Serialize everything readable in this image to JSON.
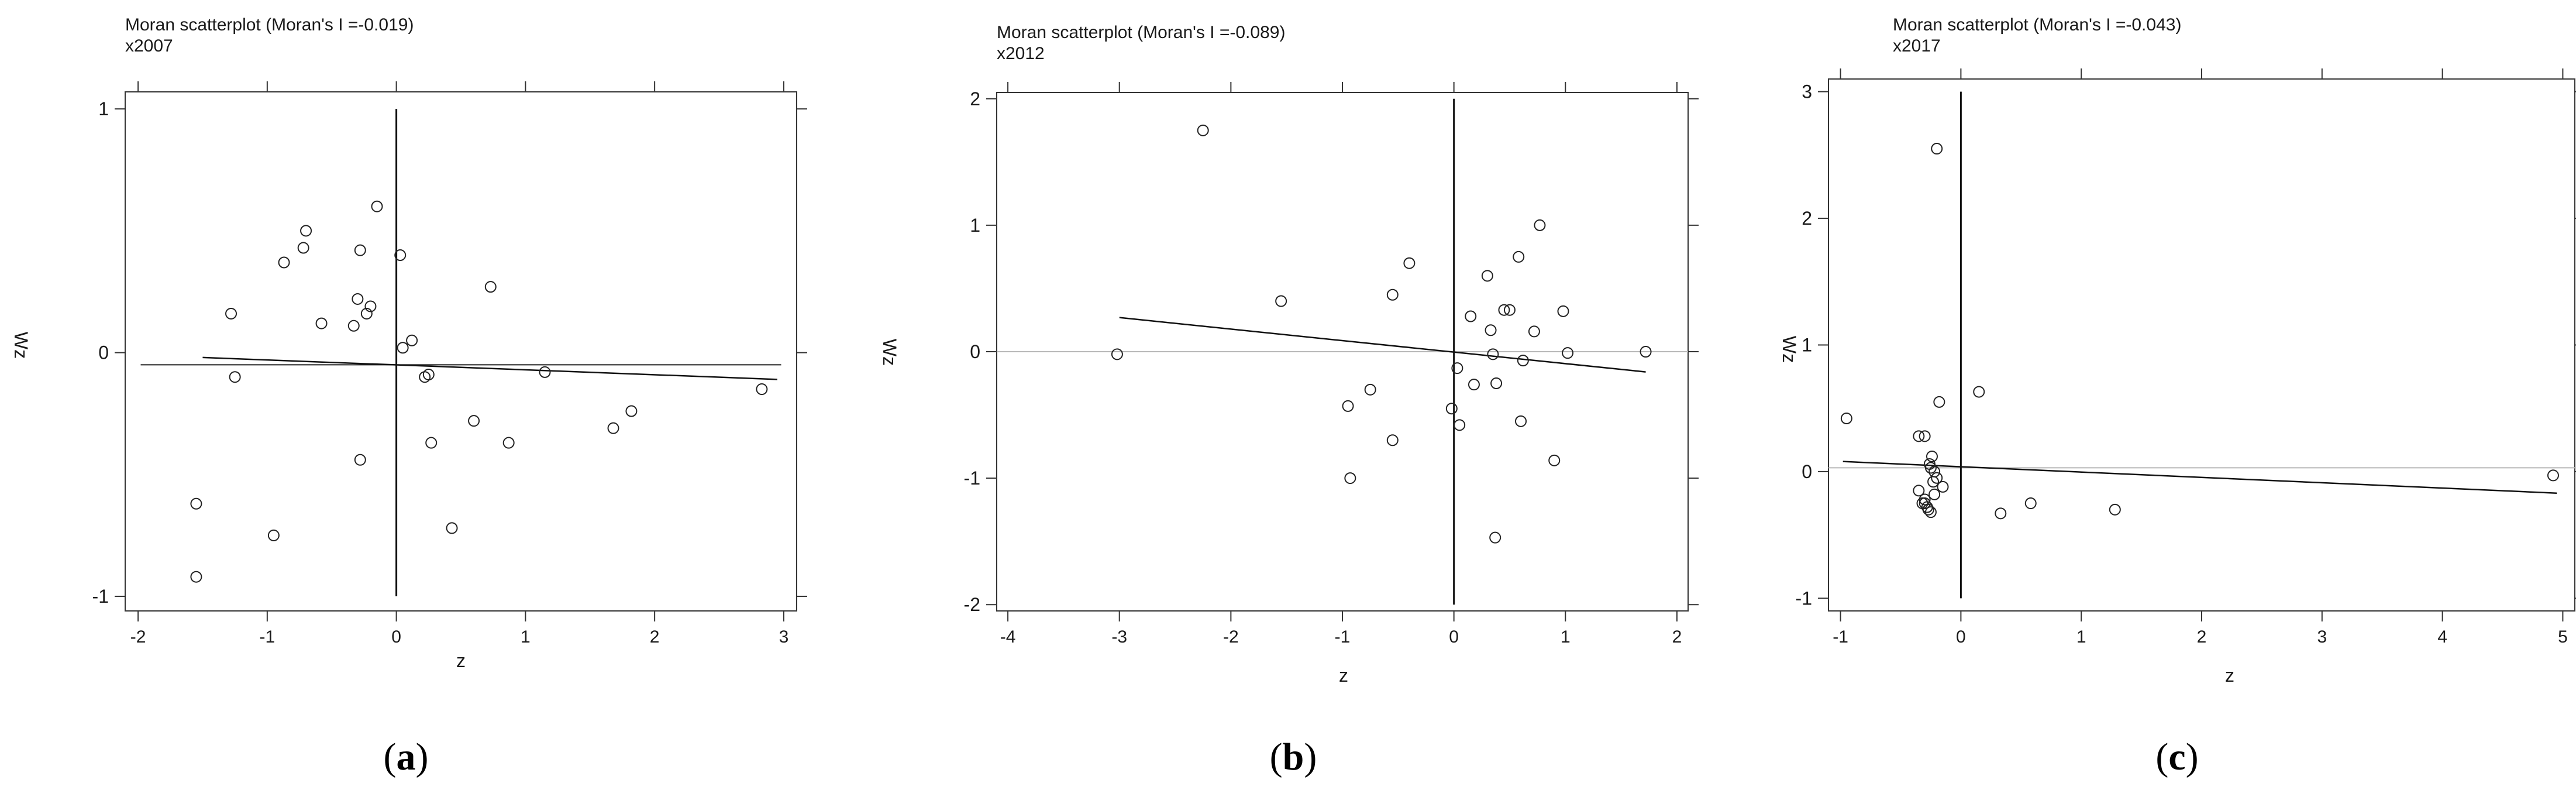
{
  "chart_data": [
    {
      "type": "scatter",
      "title": "Moran scatterplot (Moran's I =-0.019)",
      "subtitle": "x2007",
      "xlabel": "z",
      "ylabel": "Wz",
      "panel_label": [
        "(",
        "a",
        ")"
      ],
      "xlim": [
        -2.1,
        3.1
      ],
      "ylim": [
        -1.06,
        1.07
      ],
      "x_ticks": [
        -2,
        -1,
        0,
        1,
        2,
        3
      ],
      "y_ticks": [
        -1,
        0,
        1
      ],
      "x": [
        -1.55,
        -1.55,
        -1.25,
        -1.28,
        -0.95,
        -0.87,
        -0.72,
        -0.7,
        -0.58,
        -0.33,
        -0.3,
        -0.28,
        -0.28,
        -0.23,
        -0.2,
        -0.15,
        0.03,
        0.05,
        0.12,
        0.22,
        0.25,
        0.27,
        0.43,
        0.6,
        0.73,
        0.87,
        1.15,
        1.68,
        1.82,
        2.83
      ],
      "y": [
        -0.62,
        -0.92,
        -0.1,
        0.16,
        -0.75,
        0.37,
        0.43,
        0.5,
        0.12,
        0.11,
        0.22,
        -0.44,
        0.42,
        0.16,
        0.19,
        0.6,
        0.4,
        0.02,
        0.05,
        -0.1,
        -0.09,
        -0.37,
        -0.72,
        -0.28,
        0.27,
        -0.37,
        -0.08,
        -0.31,
        -0.24,
        -0.15
      ],
      "fit": {
        "x": [
          -1.5,
          2.95
        ],
        "y": [
          -0.02,
          -0.11
        ]
      },
      "regression_full_span": [
        -1.98,
        -0.05,
        2.98,
        -0.05
      ],
      "axis_cross": [
        0,
        -1,
        0,
        1
      ]
    },
    {
      "type": "scatter",
      "title": "Moran scatterplot (Moran's I =-0.089)",
      "subtitle": "x2012",
      "xlabel": "z",
      "ylabel": "Wz",
      "panel_label": [
        "(",
        "b",
        ")"
      ],
      "xlim": [
        -4.1,
        2.1
      ],
      "ylim": [
        -2.05,
        2.05
      ],
      "x_ticks": [
        -4,
        -3,
        -2,
        -1,
        0,
        1,
        2
      ],
      "y_ticks": [
        -2,
        -1,
        0,
        1,
        2
      ],
      "x": [
        -3.02,
        -2.25,
        -1.55,
        -0.95,
        -0.93,
        -0.75,
        -0.55,
        -0.55,
        -0.4,
        -0.02,
        0.03,
        0.05,
        0.15,
        0.18,
        0.3,
        0.33,
        0.35,
        0.37,
        0.38,
        0.45,
        0.5,
        0.58,
        0.6,
        0.62,
        0.72,
        0.77,
        0.9,
        0.98,
        1.02,
        1.72
      ],
      "y": [
        -0.02,
        1.75,
        0.4,
        -0.43,
        -1.0,
        -0.3,
        0.45,
        -0.7,
        0.7,
        -0.45,
        -0.13,
        -0.58,
        0.28,
        -0.26,
        0.6,
        0.17,
        -0.02,
        -1.47,
        -0.25,
        0.33,
        0.33,
        0.75,
        -0.55,
        -0.07,
        0.16,
        1.0,
        -0.86,
        0.32,
        -0.01,
        0.0
      ],
      "fit": {
        "x": [
          -3.0,
          1.72
        ],
        "y": [
          0.27,
          -0.16
        ]
      },
      "zero_line": 0,
      "axis_cross": [
        0,
        -2,
        0,
        2
      ]
    },
    {
      "type": "scatter",
      "title": "Moran scatterplot (Moran's I =-0.043)",
      "subtitle": "x2017",
      "xlabel": "z",
      "ylabel": "Wz",
      "panel_label": [
        "(",
        "c",
        ")"
      ],
      "xlim": [
        -1.1,
        5.1
      ],
      "ylim": [
        -1.1,
        3.1
      ],
      "x_ticks": [
        -1,
        0,
        1,
        2,
        3,
        4,
        5
      ],
      "y_ticks": [
        -1,
        0,
        1,
        2,
        3
      ],
      "x": [
        -0.95,
        -0.35,
        -0.3,
        -0.35,
        -0.3,
        -0.32,
        -0.28,
        -0.27,
        -0.25,
        -0.25,
        -0.24,
        -0.22,
        -0.23,
        -0.2,
        -0.2,
        -0.18,
        -0.15,
        0.15,
        0.33,
        0.58,
        1.28,
        4.92,
        -0.22,
        -0.3,
        -0.26
      ],
      "y": [
        0.42,
        0.28,
        0.28,
        -0.15,
        -0.22,
        -0.25,
        -0.28,
        -0.3,
        -0.32,
        0.03,
        0.12,
        0.0,
        -0.08,
        2.55,
        -0.05,
        0.55,
        -0.12,
        0.63,
        -0.33,
        -0.25,
        -0.3,
        -0.03,
        -0.18,
        -0.25,
        0.06
      ],
      "fit": {
        "x": [
          -0.98,
          4.95
        ],
        "y": [
          0.08,
          -0.17
        ]
      },
      "zero_line": 0.03,
      "axis_cross": [
        0,
        -1,
        0,
        3
      ]
    }
  ]
}
